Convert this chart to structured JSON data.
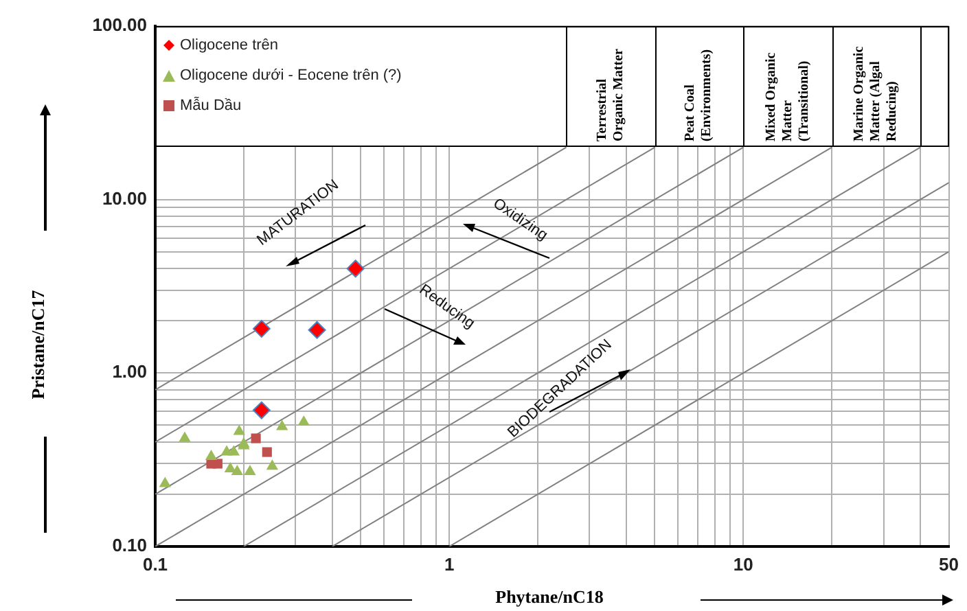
{
  "chart_data": {
    "type": "scatter",
    "xlabel": "Phytane/nC18",
    "ylabel": "Pristane/nC17",
    "log": "xy",
    "grid": true,
    "legend": "top left",
    "xlim": [
      0.1,
      50
    ],
    "ylim": [
      0.1,
      100
    ],
    "xticks": [
      0.1,
      {
        "value": 0.2,
        "label": null
      },
      {
        "value": 0.3,
        "label": null
      },
      {
        "value": 0.4,
        "label": null
      },
      {
        "value": 0.5,
        "label": null
      },
      {
        "value": 0.6,
        "label": null
      },
      {
        "value": 0.7,
        "label": null
      },
      {
        "value": 0.8,
        "label": null
      },
      {
        "value": 0.9,
        "label": null
      },
      1,
      {
        "value": 2,
        "label": null
      },
      {
        "value": 3,
        "label": null
      },
      {
        "value": 4,
        "label": null
      },
      {
        "value": 5,
        "label": null
      },
      {
        "value": 6,
        "label": null
      },
      {
        "value": 7,
        "label": null
      },
      {
        "value": 8,
        "label": null
      },
      {
        "value": 9,
        "label": null
      },
      10,
      {
        "value": 20,
        "label": null
      },
      {
        "value": 30,
        "label": null
      },
      {
        "value": 40,
        "label": null
      },
      50
    ],
    "yticks": [
      {
        "value": 0.1,
        "label": "0.10"
      },
      {
        "value": 0.2,
        "label": null
      },
      {
        "value": 0.3,
        "label": null
      },
      {
        "value": 0.4,
        "label": null
      },
      {
        "value": 0.5,
        "label": null
      },
      {
        "value": 0.6,
        "label": null
      },
      {
        "value": 0.7,
        "label": null
      },
      {
        "value": 0.8,
        "label": null
      },
      {
        "value": 0.9,
        "label": null
      },
      {
        "value": 1,
        "label": "1.00"
      },
      {
        "value": 2,
        "label": null
      },
      {
        "value": 3,
        "label": null
      },
      {
        "value": 4,
        "label": null
      },
      {
        "value": 5,
        "label": null
      },
      {
        "value": 6,
        "label": null
      },
      {
        "value": 7,
        "label": null
      },
      {
        "value": 8,
        "label": null
      },
      {
        "value": 9,
        "label": null
      },
      {
        "value": 10,
        "label": "10.00"
      },
      {
        "value": 100,
        "label": "100.00"
      }
    ],
    "series": [
      {
        "name": "Oligocene trên",
        "color": "#ff0000",
        "marker": "diamond",
        "x": [
          0.48,
          0.23,
          0.355,
          0.23
        ],
        "values": [
          4.0,
          1.8,
          1.77,
          0.61
        ]
      },
      {
        "name": "Oligocene dưới - Eocene trên (?)",
        "color": "#9bbb59",
        "marker": "triangle",
        "x": [
          0.126,
          0.193,
          0.27,
          0.32,
          0.2,
          0.185,
          0.155,
          0.108,
          0.18,
          0.19,
          0.21,
          0.25,
          0.2,
          0.175
        ],
        "values": [
          0.42,
          0.46,
          0.49,
          0.52,
          0.39,
          0.35,
          0.33,
          0.23,
          0.28,
          0.27,
          0.27,
          0.29,
          0.38,
          0.35
        ]
      },
      {
        "name": "Mẫu Dầu",
        "color": "#c0504d",
        "marker": "square",
        "x": [
          0.155,
          0.163,
          0.22,
          0.24
        ],
        "values": [
          0.3,
          0.3,
          0.42,
          0.35
        ]
      },
      {
        "type": "line",
        "color": "#808080",
        "marker": "none",
        "x": [
          0.1,
          2.5
        ],
        "values": [
          0.8,
          20
        ]
      },
      {
        "type": "line",
        "color": "#808080",
        "marker": "none",
        "x": [
          0.1,
          5
        ],
        "values": [
          0.4,
          20
        ]
      },
      {
        "type": "line",
        "color": "#808080",
        "marker": "none",
        "x": [
          0.1,
          10
        ],
        "values": [
          0.2,
          20
        ]
      },
      {
        "type": "line",
        "color": "#808080",
        "marker": "none",
        "x": [
          0.1,
          20
        ],
        "values": [
          0.1,
          20
        ]
      },
      {
        "type": "line",
        "color": "#808080",
        "marker": "none",
        "x": [
          0.2,
          40
        ],
        "values": [
          0.1,
          20
        ]
      },
      {
        "type": "line",
        "color": "#808080",
        "marker": "none",
        "x": [
          0.4,
          50
        ],
        "values": [
          0.1,
          12.5
        ]
      },
      {
        "type": "line",
        "color": "#808080",
        "marker": "none",
        "x": [
          1,
          50
        ],
        "values": [
          0.1,
          5
        ]
      }
    ],
    "annotations": [
      "Terrestrial Organic Matter",
      "Peat Coal (Environments)",
      "Mixed Organic Matter (Transitional)",
      "Marine Organic Matter (Algal Reducing)",
      "MATURATION",
      "Oxidizing",
      {
        "text": "Reducing",
        "x": 0.9,
        "y": 1.8
      },
      "BIODEGRADATION"
    ]
  }
}
